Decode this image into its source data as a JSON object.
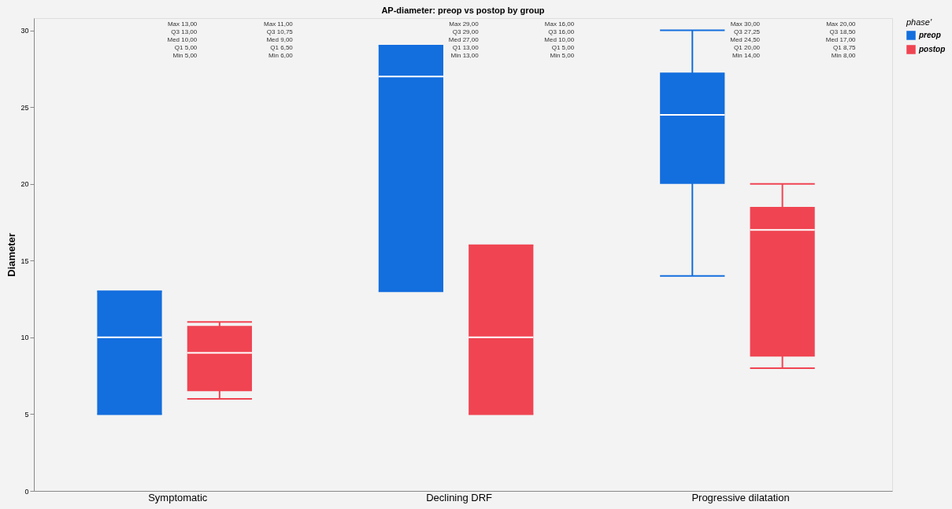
{
  "chart_data": {
    "type": "box",
    "title": "AP-diameter: preop vs postop by group",
    "ylabel": "Diameter",
    "legend_title": "phase'",
    "categories": [
      "Symptomatic",
      "Declining DRF",
      "Progressive dilatation"
    ],
    "series": [
      {
        "name": "preop",
        "color": "#136ede",
        "boxes": [
          {
            "low": 5,
            "q1": 5,
            "median": 10,
            "q3": 13,
            "high": 13
          },
          {
            "low": 13,
            "q1": 13,
            "median": 27,
            "q3": 29,
            "high": 29
          },
          {
            "low": 14,
            "q1": 20,
            "median": 24.5,
            "q3": 27.25,
            "high": 30
          }
        ]
      },
      {
        "name": "postop",
        "color": "#f04452",
        "boxes": [
          {
            "low": 6,
            "q1": 6.5,
            "median": 9,
            "q3": 10.75,
            "high": 11
          },
          {
            "low": 5,
            "q1": 5,
            "median": 10,
            "q3": 16,
            "high": 16
          },
          {
            "low": 8,
            "q1": 8.75,
            "median": 17,
            "q3": 18.5,
            "high": 20
          }
        ]
      }
    ],
    "annotations": [
      "Max 13,00\nQ3  13,00\nMed 10,00\nQ1  5,00\nMin 5,00",
      "Max 11,00\nQ3  10,75\nMed 9,00\nQ1  6,50\nMin 6,00",
      "Max 29,00\nQ3  29,00\nMed 27,00\nQ1  13,00\nMin 13,00",
      "Max 16,00\nQ3  16,00\nMed 10,00\nQ1  5,00\nMin 5,00",
      "Max 30,00\nQ3  27,25\nMed 24,50\nQ1  20,00\nMin 14,00",
      "Max 20,00\nQ3  18,50\nMed 17,00\nQ1  8,75\nMin 8,00"
    ],
    "ylim": [
      0,
      30.8
    ],
    "yticks": [
      0,
      5,
      10,
      15,
      20,
      25,
      30
    ],
    "grid": false,
    "legend": "right"
  }
}
